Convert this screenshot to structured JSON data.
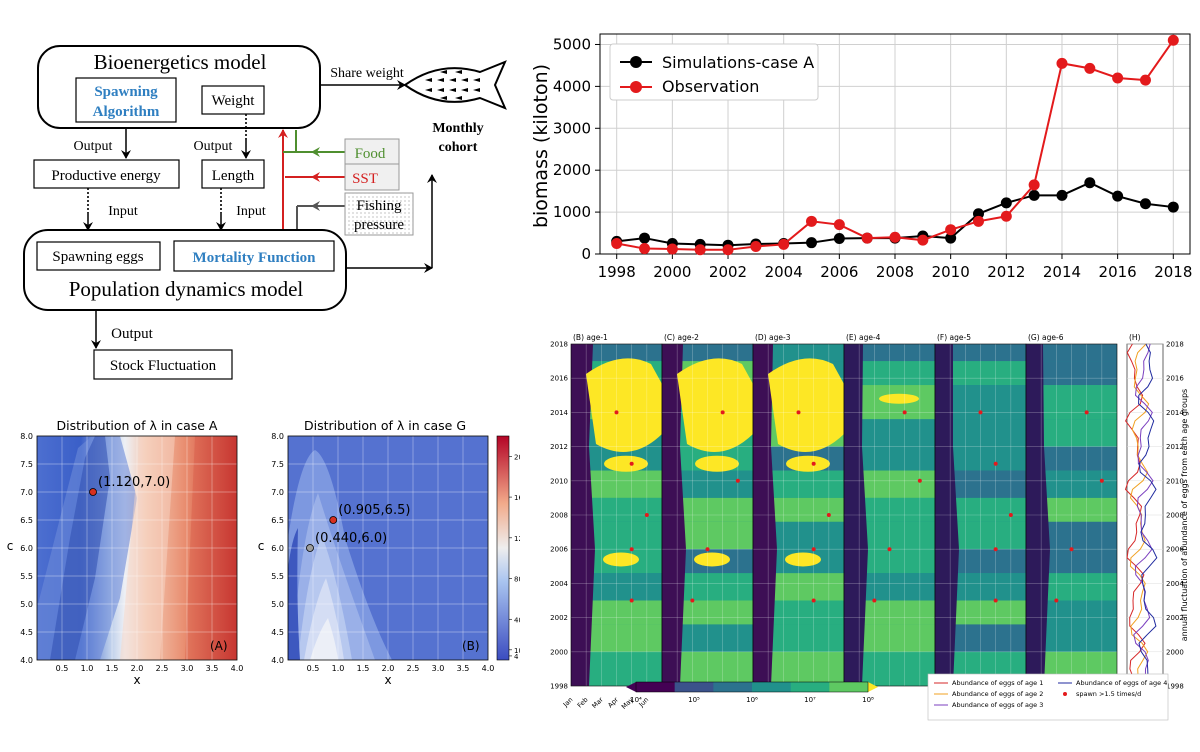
{
  "diagram": {
    "bioenergetics": "Bioenergetics model",
    "spawning_algorithm": [
      "Spawning",
      "Algorithm"
    ],
    "weight": "Weight",
    "share_weight": "Share weight",
    "monthly_cohort": [
      "Monthly",
      "cohort"
    ],
    "output1": "Output",
    "output2": "Output",
    "productive_energy": "Productive energy",
    "length": "Length",
    "input1": "Input",
    "input2": "Input",
    "food": "Food",
    "sst": "SST",
    "fishing_pressure": [
      "Fishing",
      "pressure"
    ],
    "spawning_eggs": "Spawning eggs",
    "mortality_function": "Mortality Function",
    "population_dynamics": "Population dynamics model",
    "output3": "Output",
    "stock_fluctuation": "Stock Fluctuation",
    "colors": {
      "blue_text": "#2f7fc1",
      "food_green": "#4f8f2f",
      "sst_red": "#d42020"
    }
  },
  "chart_data": [
    {
      "id": "biomass",
      "type": "line",
      "xlabel": "",
      "ylabel": "biomass (kiloton)",
      "x": [
        1998,
        1999,
        2000,
        2001,
        2002,
        2003,
        2004,
        2005,
        2006,
        2007,
        2008,
        2009,
        2010,
        2011,
        2012,
        2013,
        2014,
        2015,
        2016,
        2017,
        2018
      ],
      "xticks": [
        "1998",
        "2000",
        "2002",
        "2004",
        "2006",
        "2008",
        "2010",
        "2012",
        "2014",
        "2016",
        "2018"
      ],
      "yticks": [
        "0",
        "1000",
        "2000",
        "3000",
        "4000",
        "5000"
      ],
      "xlim": [
        1997.4,
        2018.6
      ],
      "ylim": [
        0,
        5250
      ],
      "grid": true,
      "legend_position": "upper-left",
      "series": [
        {
          "name": "Simulations-case A",
          "color": "#000000",
          "values": [
            300,
            380,
            250,
            230,
            210,
            240,
            250,
            270,
            370,
            380,
            380,
            430,
            380,
            960,
            1220,
            1400,
            1400,
            1700,
            1380,
            1200,
            1120
          ]
        },
        {
          "name": "Observation",
          "color": "#e31a1c",
          "values": [
            250,
            130,
            120,
            100,
            100,
            180,
            230,
            780,
            700,
            380,
            400,
            330,
            580,
            780,
            900,
            1650,
            4550,
            4430,
            4200,
            4150,
            5100
          ]
        }
      ]
    },
    {
      "id": "lambda_A",
      "type": "heatmap",
      "title": "Distribution of λ in case A",
      "xlabel": "x",
      "ylabel": "c",
      "xlim": [
        0,
        4
      ],
      "ylim": [
        4,
        8
      ],
      "xticks": [
        "0.5",
        "1.0",
        "1.5",
        "2.0",
        "2.5",
        "3.0",
        "3.5",
        "4.0"
      ],
      "yticks": [
        "4.0",
        "4.5",
        "5.0",
        "5.5",
        "6.0",
        "6.5",
        "7.0",
        "7.5",
        "8.0"
      ],
      "panel_label": "(A)",
      "points": [
        {
          "x": 1.12,
          "y": 7.0,
          "label": "(1.120,7.0)",
          "color": "#d7301f"
        }
      ]
    },
    {
      "id": "lambda_G",
      "type": "heatmap",
      "title": "Distribution of λ in case G",
      "xlabel": "x",
      "ylabel": "c",
      "xlim": [
        0,
        4
      ],
      "ylim": [
        4,
        8
      ],
      "xticks": [
        "0.5",
        "1.0",
        "1.5",
        "2.0",
        "2.5",
        "3.0",
        "3.5",
        "4.0"
      ],
      "yticks": [
        "4.0",
        "4.5",
        "5.0",
        "5.5",
        "6.0",
        "6.5",
        "7.0",
        "7.5",
        "8.0"
      ],
      "panel_label": "(B)",
      "colorbar_ticks": [
        "4",
        "10",
        "40",
        "80",
        "120",
        "160",
        "200"
      ],
      "points": [
        {
          "x": 0.905,
          "y": 6.5,
          "label": "(0.905,6.5)",
          "color": "#d7301f"
        },
        {
          "x": 0.44,
          "y": 6.0,
          "label": "(0.440,6.0)",
          "color": "#9e9e9e"
        }
      ]
    },
    {
      "id": "eggs",
      "type": "heatmap",
      "panel_titles": [
        "(B) age-1",
        "(C) age-2",
        "(D) age-3",
        "(E) age-4",
        "(F) age-5",
        "(G) age-6",
        "(H)"
      ],
      "months": [
        "Jan",
        "Feb",
        "Mar",
        "Apr",
        "May",
        "Jun"
      ],
      "years": [
        "1998",
        "2000",
        "2002",
        "2004",
        "2006",
        "2008",
        "2010",
        "2012",
        "2014",
        "2016",
        "2018"
      ],
      "colorbar_ticks": [
        "10⁴",
        "10⁵",
        "10⁶",
        "10⁷",
        "10⁸"
      ],
      "h_xticks": [
        "17.5",
        "20.0"
      ],
      "h_ylabel": "annual fluctuation of abundance of eggs from each age groups",
      "legend": [
        {
          "name": "Abundance of eggs of age 1",
          "color": "#d62728"
        },
        {
          "name": "Abundance of eggs of age 2",
          "color": "#f0a020"
        },
        {
          "name": "Abundance of eggs of age 3",
          "color": "#7b3fbf"
        },
        {
          "name": "Abundance of eggs of age 4",
          "color": "#1f2a9f"
        },
        {
          "name": "spawn >1.5 times/d",
          "color": "#e31a1c"
        }
      ]
    }
  ]
}
